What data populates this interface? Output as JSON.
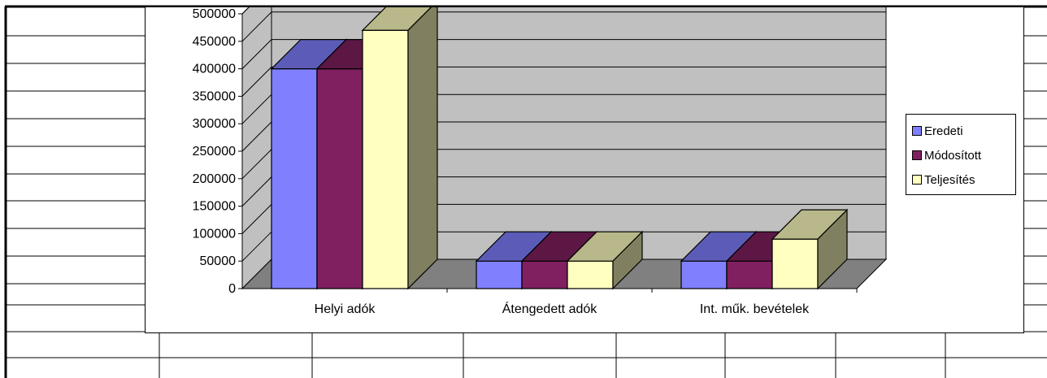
{
  "chart_data": {
    "type": "bar",
    "categories": [
      "Helyi adók",
      "Átengedett adók",
      "Int. műk. bevételek"
    ],
    "series": [
      {
        "name": "Eredeti",
        "color": "#8080FF",
        "values": [
          400000,
          50000,
          50000
        ]
      },
      {
        "name": "Módosított",
        "color": "#802060",
        "values": [
          400000,
          50000,
          50000
        ]
      },
      {
        "name": "Teljesítés",
        "color": "#FFFFC0",
        "values": [
          470000,
          50000,
          90000
        ]
      }
    ],
    "ylim": [
      0,
      500000
    ],
    "yticks": [
      "0",
      "50000",
      "100000",
      "150000",
      "200000",
      "250000",
      "300000",
      "350000",
      "400000",
      "450000",
      "500000"
    ],
    "grid": true,
    "legend_position": "right",
    "wall_color": "#C0C0C0",
    "floor_color": "#808080"
  }
}
